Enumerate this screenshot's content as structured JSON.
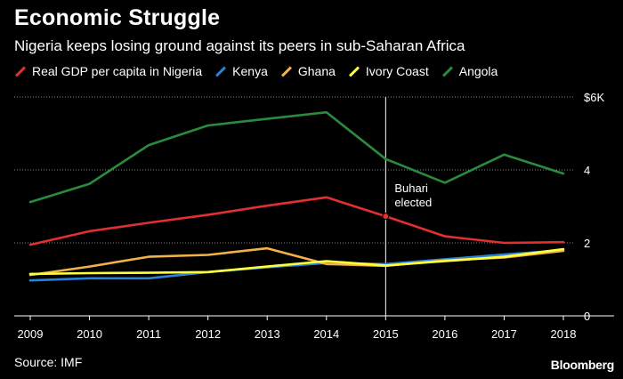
{
  "title": "Economic Struggle",
  "subtitle": "Nigeria keeps losing ground against its peers in sub-Saharan Africa",
  "source": "Source: IMF",
  "brand": "Bloomberg",
  "annotation": {
    "text_line1": "Buhari",
    "text_line2": "elected",
    "x": 2015
  },
  "chart_data": {
    "type": "line",
    "x": [
      2009,
      2010,
      2011,
      2012,
      2013,
      2014,
      2015,
      2016,
      2017,
      2018
    ],
    "ylim": [
      0,
      6
    ],
    "yticks": [
      0,
      2,
      4,
      6
    ],
    "ytick_labels": [
      "0",
      "2",
      "4",
      "$6K"
    ],
    "grid": true,
    "legend_position": "top-left",
    "series": [
      {
        "name": "Real GDP per capita in Nigeria",
        "color": "#e0302f",
        "values": [
          1.95,
          2.32,
          2.55,
          2.77,
          3.02,
          3.25,
          2.73,
          2.18,
          2.0,
          2.02
        ]
      },
      {
        "name": "Kenya",
        "color": "#2a83d8",
        "values": [
          0.97,
          1.03,
          1.03,
          1.2,
          1.33,
          1.45,
          1.42,
          1.55,
          1.68,
          1.8
        ]
      },
      {
        "name": "Ghana",
        "color": "#f3b14a",
        "values": [
          1.12,
          1.35,
          1.62,
          1.67,
          1.85,
          1.42,
          1.37,
          1.52,
          1.6,
          1.78
        ]
      },
      {
        "name": "Ivory Coast",
        "color": "#ffff3a",
        "values": [
          1.15,
          1.17,
          1.18,
          1.2,
          1.35,
          1.5,
          1.38,
          1.5,
          1.62,
          1.83
        ]
      },
      {
        "name": "Angola",
        "color": "#2a8a3e",
        "values": [
          3.12,
          3.62,
          4.68,
          5.22,
          5.4,
          5.58,
          4.3,
          3.65,
          4.42,
          3.9
        ]
      }
    ]
  }
}
